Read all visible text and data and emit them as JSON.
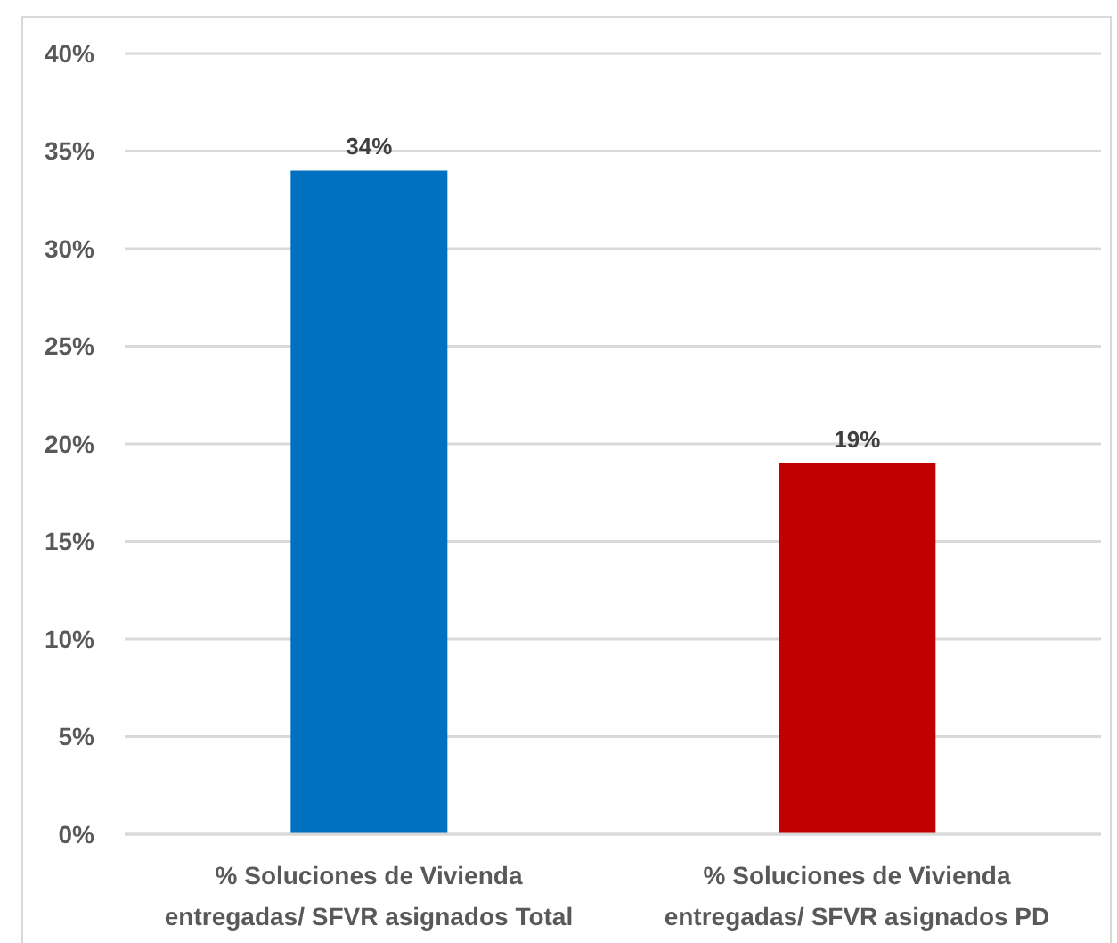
{
  "chart_data": {
    "type": "bar",
    "categories": [
      "% Soluciones de Vivienda entregadas/ SFVR asignados Total",
      "% Soluciones de Vivienda entregadas/ SFVR asignados PD"
    ],
    "values": [
      34,
      19
    ],
    "colors": [
      "#0070c0",
      "#c00000"
    ],
    "value_labels": [
      "34%",
      "19%"
    ],
    "ylim": [
      0,
      40
    ],
    "yticks": [
      {
        "value": 0,
        "label": "0%"
      },
      {
        "value": 5,
        "label": "5%"
      },
      {
        "value": 10,
        "label": "10%"
      },
      {
        "value": 15,
        "label": "15%"
      },
      {
        "value": 20,
        "label": "20%"
      },
      {
        "value": 25,
        "label": "25%"
      },
      {
        "value": 30,
        "label": "30%"
      },
      {
        "value": 35,
        "label": "35%"
      },
      {
        "value": 40,
        "label": "40%"
      }
    ],
    "grid": "y"
  }
}
